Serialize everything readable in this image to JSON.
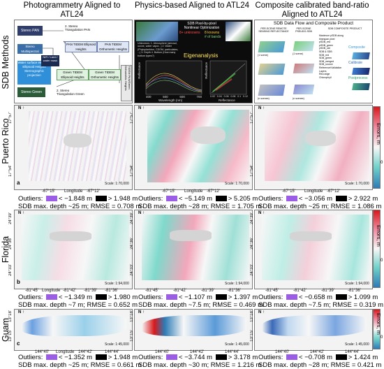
{
  "columns": [
    {
      "title": "Photogrammetry Aligned to ATL24"
    },
    {
      "title": "Physics-based Aligned to ATL24"
    },
    {
      "title": "Composite calibrated band-ratio Aligned to ATL24"
    }
  ],
  "rows": [
    {
      "label": "SDB Methods"
    },
    {
      "label": "Puerto Rico"
    },
    {
      "label": "Florida"
    },
    {
      "label": "Guam"
    }
  ],
  "colorbar": {
    "label": "Errors, m",
    "ticks": [
      "5",
      "0",
      "-5"
    ]
  },
  "photogrammetry_workflow": {
    "boxes": [
      "Stereo PAN",
      "Stereo Multispectral",
      "Water surface elevation Ellipsoid Heights Stereographic projection",
      "NIR / Land / water mask",
      "Stereo Green band",
      "PAN TIDEM Ellipsoid Heights",
      "PAN TIDEM Orthometric Heights",
      "Green TIDEM Ellipsoid Heights",
      "Green TIDEM Orthometric Heights",
      "TIDEM PAN/Green Orthometric Heights"
    ],
    "side_labels": [
      "2. Stereo Triangulation PAN",
      "2. Stereo Triangulation Green"
    ]
  },
  "physics_workflow": {
    "title": "SDB Pixel-by-pixel Nonlinear Optimization",
    "legend_unknowns": "8+ unknowns",
    "legend_knowns": "8 knowns",
    "legend_bands": "# of bands",
    "unknowns_list": "Unknowns: 1. Atmosphere (aerosol, ozone, water vapor...) 2. Water (Phytoplankton, CDOM, particulates, ...) 3. Depth 4. Bottom (How many bottom types?)",
    "annotation": "Eigenanalysis",
    "xlabel": "Wavelength (nm)",
    "ylabel": "Reflectance",
    "x_ticks": [
      "400",
      "500",
      "600",
      "700"
    ],
    "inset_ylabel": "Reflectance",
    "inset_xlabel": "Reflectance",
    "inset_ticks": [
      "0.02",
      "0.04",
      "0.06",
      "0.08",
      "0.1",
      "0.12"
    ]
  },
  "composite_workflow": {
    "title": "SDB Data Flow and Composite Product",
    "headers": [
      "PER-SCENE REMOTE SENSING REFLECTANCE",
      "PER-SCENE PSEUDO-SDB",
      "SDB COMPOSITE PRODUCT"
    ],
    "product_items": [
      "Maximum pSDB along timespan pixel",
      "pSDB_red",
      "pSDB_green",
      "pSDB_std",
      "SDB & SDB",
      "SDB_red",
      "SDB_green",
      "SDB_merged",
      "SDB_source",
      "Reference/Validation Layers",
      "Red-edge",
      "Chlorophyll"
    ],
    "tags": [
      "Composite",
      "Calibrate",
      "Postprocess"
    ],
    "stack_labels": [
      "(1 scene)",
      "(n scenes)",
      "(1 scene)",
      "(n scenes)"
    ]
  },
  "maps": {
    "puerto_rico": {
      "lat_ticks": [
        "17°57'",
        "17°54'"
      ],
      "lon_ticks": [
        "-67°15'",
        "-67°12'"
      ],
      "lon_label": "Longitude",
      "lat_label": "Latitude",
      "scale": "Scale: 1:70,000",
      "panel_letter": "a"
    },
    "florida": {
      "lat_ticks": [
        "24°39'",
        "24°36'",
        "24°33'"
      ],
      "lon_ticks": [
        "-81°45'",
        "-81°42'",
        "-81°39'",
        "-81°36'"
      ],
      "lon_label": "Longitude",
      "lat_label": "Latitude",
      "scale": "Scale: 1:94,000",
      "panel_letter": "b"
    },
    "guam": {
      "lat_ticks": [
        "13°18'",
        "13°15'"
      ],
      "lon_ticks": [
        "144°40'",
        "144°42'",
        "144°44'"
      ],
      "lon_label": "Longitude",
      "lat_label": "Latitude",
      "scale": "Scale: 1:45,000",
      "panel_letter": "c"
    }
  },
  "stats": {
    "outliers_label": "Outliers:",
    "outlier_low_color": "#9b5de5",
    "outlier_high_color": "#000000",
    "rows": [
      [
        {
          "low": "< −1.848 m",
          "high": "> 1.948 m",
          "summary": "SDB max. depth ~25 m; RMSE = 0.708 m"
        },
        {
          "low": "< −5.149 m",
          "high": "> 5.205 m",
          "summary": "SDB max. depth ~28 m; RMSE = 1.705 m"
        },
        {
          "low": "< −3.056 m",
          "high": "> 2.922 m",
          "summary": "SDB max. depth ~25 m; RMSE = 1.086 m"
        }
      ],
      [
        {
          "low": "< −1.349 m",
          "high": "> 1.980 m",
          "summary": "SDB max. depth ~7 m; RMSE = 0.652 m"
        },
        {
          "low": "< −1.107 m",
          "high": "> 1.397 m",
          "summary": "SDB max. depth ~7.5 m; RMSE = 0.469 m"
        },
        {
          "low": "< −0.658 m",
          "high": "> 1.099 m",
          "summary": "SDB max. depth ~7.5 m; RMSE = 0.319 m"
        }
      ],
      [
        {
          "low": "< −1.352 m",
          "high": "> 1.948 m",
          "summary": "SDB max. depth ~25 m; RMSE = 0.661 m"
        },
        {
          "low": "< −3.744 m",
          "high": "> 3.178 m",
          "summary": "SDB max. depth ~30 m; RMSE = 1.216 m"
        },
        {
          "low": "< −0.708 m",
          "high": "> 1.424 m",
          "summary": "SDB max. depth ~28 m; RMSE = 0.421 m"
        }
      ]
    ]
  }
}
